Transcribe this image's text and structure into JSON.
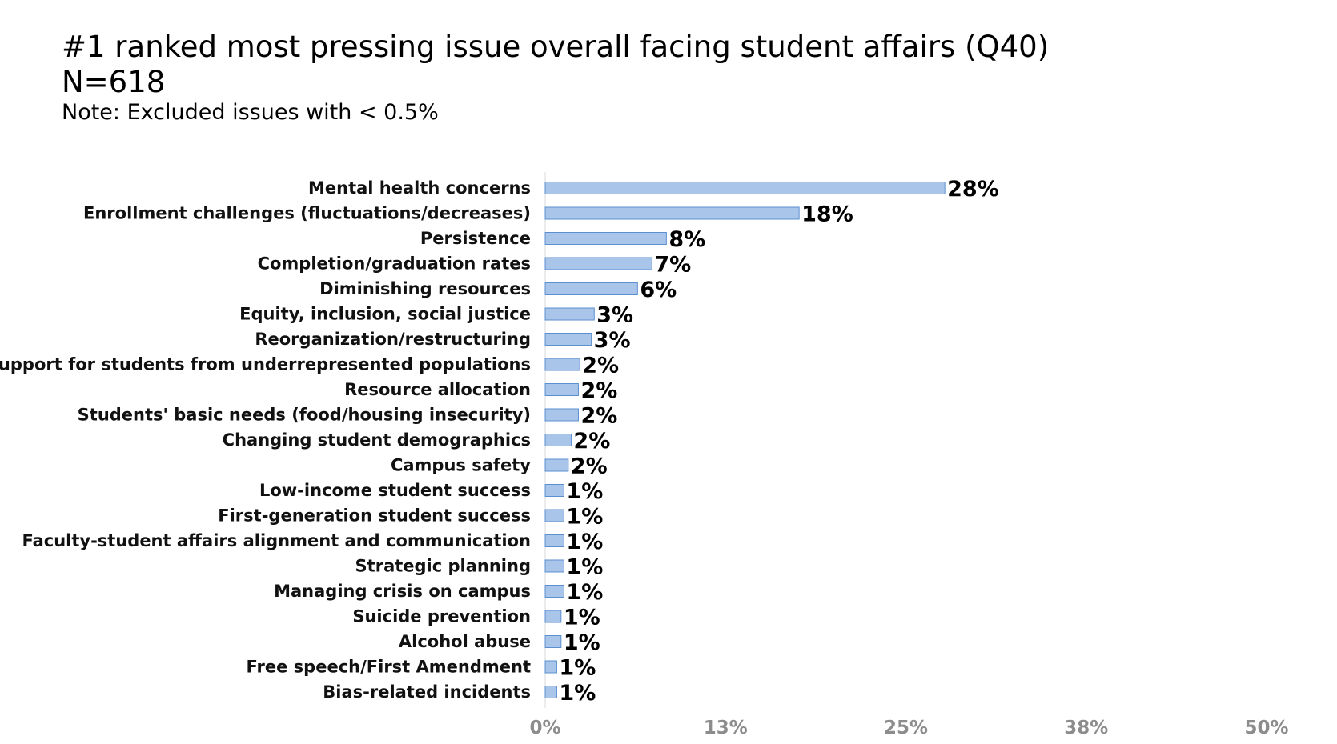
{
  "chart_data": {
    "type": "bar",
    "orientation": "horizontal",
    "title": "#1 ranked most pressing issue overall facing student affairs (Q40)",
    "subtitle": "N=618",
    "note": "Note: Excluded issues with < 0.5%",
    "categories": [
      "Mental health concerns",
      "Enrollment challenges (fluctuations/decreases)",
      "Persistence",
      "Completion/graduation rates",
      "Diminishing resources",
      "Equity, inclusion, social justice",
      "Reorganization/restructuring",
      "Support for students from underrepresented populations",
      "Resource allocation",
      "Students' basic needs (food/housing insecurity)",
      "Changing student demographics",
      "Campus safety",
      "Low-income student success",
      "First-generation student success",
      "Faculty-student affairs alignment and communication",
      "Strategic planning",
      "Managing crisis on campus",
      "Suicide prevention",
      "Alcohol abuse",
      "Free speech/First Amendment",
      "Bias-related incidents"
    ],
    "values": [
      27.7,
      17.6,
      8.4,
      7.4,
      6.4,
      3.4,
      3.2,
      2.4,
      2.3,
      2.3,
      1.8,
      1.6,
      1.3,
      1.3,
      1.3,
      1.3,
      1.3,
      1.1,
      1.1,
      0.8,
      0.8
    ],
    "value_labels": [
      "28%",
      "18%",
      "8%",
      "7%",
      "6%",
      "3%",
      "3%",
      "2%",
      "2%",
      "2%",
      "2%",
      "2%",
      "1%",
      "1%",
      "1%",
      "1%",
      "1%",
      "1%",
      "1%",
      "1%",
      "1%"
    ],
    "xlim": [
      0,
      50
    ],
    "xticks": [
      0,
      12.5,
      25,
      37.5,
      50
    ],
    "xtick_labels": [
      "0%",
      "13%",
      "25%",
      "38%",
      "50%"
    ],
    "grid": false,
    "legend": "none",
    "colors": {
      "bar_fill": "#a9c6ea",
      "bar_stroke": "#5b8fd0",
      "tick_label": "#8c8c8c"
    }
  }
}
